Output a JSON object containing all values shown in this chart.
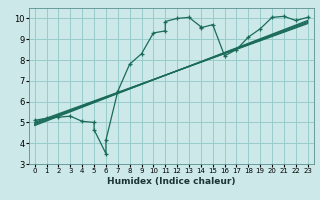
{
  "title": "",
  "xlabel": "Humidex (Indice chaleur)",
  "bg_color": "#cce8e8",
  "grid_color": "#99cccc",
  "line_color": "#1a6b5a",
  "xlim": [
    -0.5,
    23.5
  ],
  "ylim": [
    3,
    10.5
  ],
  "xticks": [
    0,
    1,
    2,
    3,
    4,
    5,
    6,
    7,
    8,
    9,
    10,
    11,
    12,
    13,
    14,
    15,
    16,
    17,
    18,
    19,
    20,
    21,
    22,
    23
  ],
  "yticks": [
    3,
    4,
    5,
    6,
    7,
    8,
    9,
    10
  ],
  "main_line_x": [
    0,
    1,
    2,
    3,
    4,
    5,
    5,
    6,
    6,
    7,
    8,
    9,
    10,
    11,
    11,
    12,
    13,
    14,
    14,
    15,
    16,
    17,
    18,
    19,
    20,
    21,
    22,
    23
  ],
  "main_line_y": [
    5.1,
    5.2,
    5.25,
    5.3,
    5.05,
    5.0,
    4.65,
    3.5,
    4.15,
    6.5,
    7.8,
    8.3,
    9.3,
    9.4,
    9.85,
    10.0,
    10.05,
    9.6,
    9.55,
    9.7,
    8.2,
    8.5,
    9.1,
    9.5,
    10.05,
    10.1,
    9.9,
    10.05
  ],
  "reg_lines": [
    {
      "x": [
        0,
        23
      ],
      "y": [
        5.0,
        9.75
      ]
    },
    {
      "x": [
        0,
        23
      ],
      "y": [
        4.95,
        9.8
      ]
    },
    {
      "x": [
        0,
        23
      ],
      "y": [
        4.9,
        9.85
      ]
    },
    {
      "x": [
        0,
        23
      ],
      "y": [
        4.85,
        9.9
      ]
    }
  ]
}
